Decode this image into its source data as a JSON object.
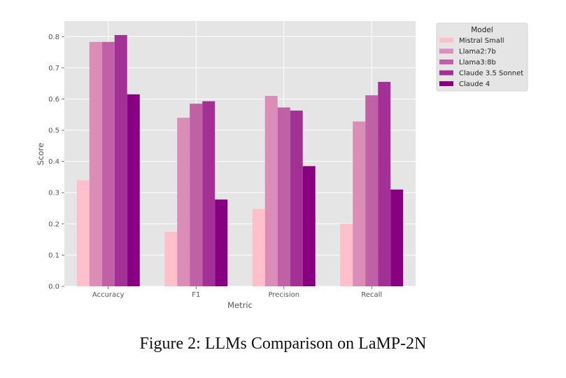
{
  "caption": "Figure 2: LLMs Comparison on LaMP-2N",
  "chart_data": {
    "type": "bar",
    "title": "",
    "xlabel": "Metric",
    "ylabel": "Score",
    "ylim": [
      0,
      0.85
    ],
    "yticks": [
      "0.0",
      "0.1",
      "0.2",
      "0.3",
      "0.4",
      "0.5",
      "0.6",
      "0.7",
      "0.8"
    ],
    "grid": true,
    "legend": {
      "title": "Model",
      "placement": "outside-top-right"
    },
    "categories": [
      "Accuracy",
      "F1",
      "Precision",
      "Recall"
    ],
    "series": [
      {
        "name": "Mistral Small",
        "color": "#ffc0cb",
        "values": [
          0.34,
          0.175,
          0.248,
          0.2
        ]
      },
      {
        "name": "Llama2:7b",
        "color": "#dc8db7",
        "values": [
          0.783,
          0.54,
          0.61,
          0.528
        ]
      },
      {
        "name": "Llama3:8b",
        "color": "#c061a8",
        "values": [
          0.783,
          0.585,
          0.573,
          0.612
        ]
      },
      {
        "name": "Claude 3.5 Sonnet",
        "color": "#a33094",
        "values": [
          0.805,
          0.593,
          0.563,
          0.655
        ]
      },
      {
        "name": "Claude 4",
        "color": "#87007f",
        "values": [
          0.615,
          0.278,
          0.385,
          0.31
        ]
      }
    ],
    "colors": {
      "plot_bg": "#e5e5e5",
      "grid": "#ffffff"
    }
  }
}
